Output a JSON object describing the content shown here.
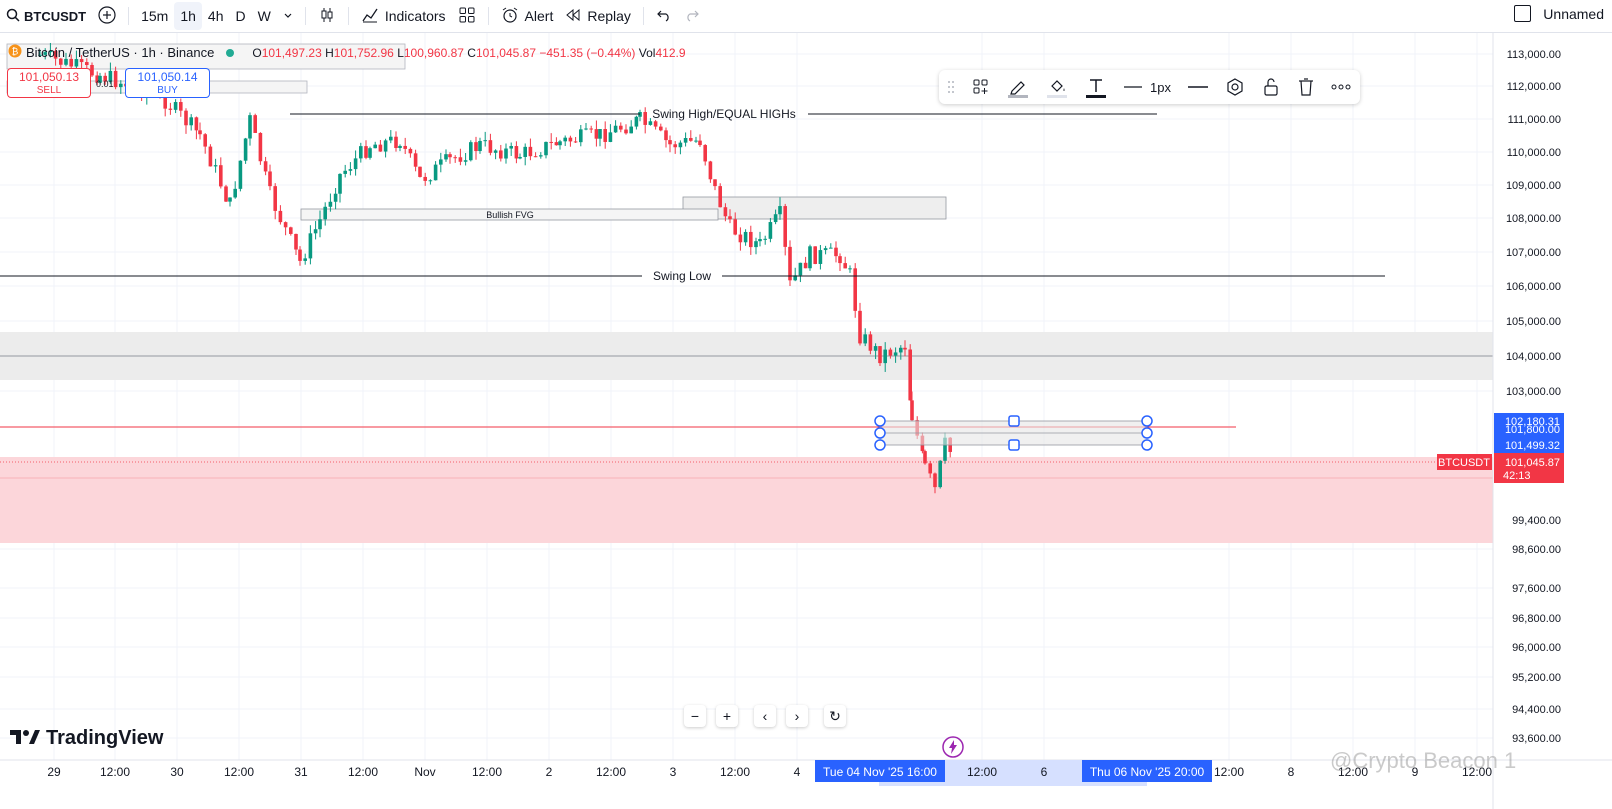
{
  "toolbar": {
    "symbol": "BTCUSDT",
    "timeframes": [
      "15m",
      "1h",
      "4h",
      "D",
      "W"
    ],
    "active_timeframe": "1h",
    "indicators_label": "Indicators",
    "alert_label": "Alert",
    "replay_label": "Replay",
    "layout_name": "Unnamed"
  },
  "legend": {
    "title": "Bitcoin / TetherUS · 1h · Binance",
    "open_label": "O",
    "open": "101,497.23",
    "high_label": "H",
    "high": "101,752.96",
    "low_label": "L",
    "low": "100,960.87",
    "close_label": "C",
    "close": "101,045.87",
    "change": "−451.35 (−0.44%)",
    "vol_label": "Vol",
    "vol": "412.9"
  },
  "trade": {
    "sell_price": "101,050.13",
    "sell_label": "SELL",
    "buy_price": "101,050.14",
    "buy_label": "BUY",
    "qty": "0.01"
  },
  "drawing_toolbar": {
    "width_label": "1px"
  },
  "annotations": {
    "swing_high": "Swing High/EQUAL HIGHs",
    "swing_low": "Swing Low",
    "fvg": "Bullish FVG"
  },
  "price_axis": {
    "labels": [
      "113,000.00",
      "112,000.00",
      "111,000.00",
      "110,000.00",
      "109,000.00",
      "108,000.00",
      "107,000.00",
      "106,000.00",
      "105,000.00",
      "104,000.00",
      "103,000.00",
      "99,400.00",
      "98,600.00",
      "97,600.00",
      "96,800.00",
      "96,000.00",
      "95,200.00",
      "94,400.00",
      "93,600.00"
    ],
    "tag_upper": "102,180.31",
    "tag_mid_hidden": "101,800.00",
    "tag_lower": "101,499.32",
    "current_price": "101,045.87",
    "countdown": "42:13",
    "symbol_tag": "BTCUSDT"
  },
  "time_axis": {
    "labels": [
      "29",
      "12:00",
      "30",
      "12:00",
      "31",
      "12:00",
      "Nov",
      "12:00",
      "2",
      "12:00",
      "3",
      "12:00",
      "4",
      "12:00",
      "6",
      "12:00",
      "8",
      "12:00",
      "9",
      "12:00"
    ],
    "range_start": "Tue 04 Nov '25",
    "range_start_time": "16:00",
    "range_end": "Thu 06 Nov '25",
    "range_end_time": "20:00"
  },
  "brand": "TradingView",
  "watermark": "@Crypto Beacon 1",
  "colors": {
    "up": "#089981",
    "down": "#f23645",
    "accent": "#2962ff",
    "zone_red": "#fcd6da",
    "zone_gray": "#ececec"
  }
}
